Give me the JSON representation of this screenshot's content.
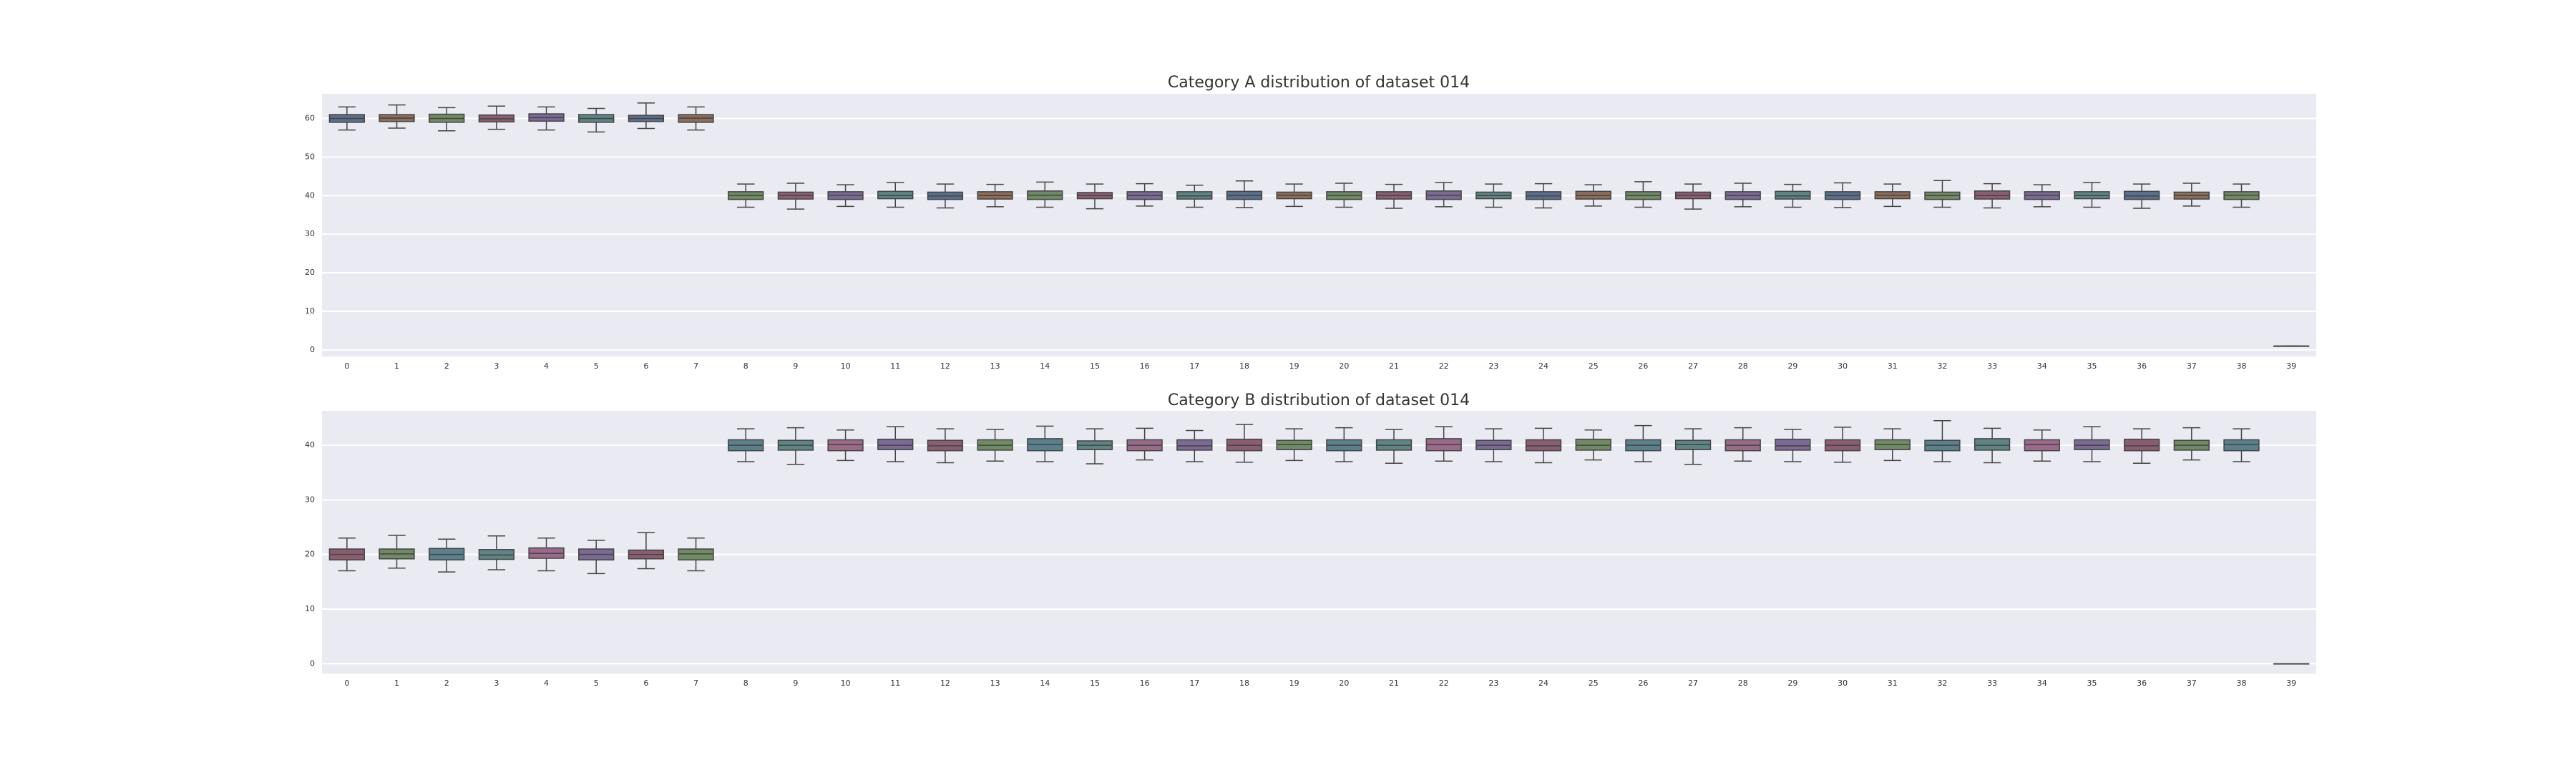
{
  "chart_data": [
    {
      "type": "box",
      "title": "Category A distribution of dataset 014",
      "categories": [
        "0",
        "1",
        "2",
        "3",
        "4",
        "5",
        "6",
        "7",
        "8",
        "9",
        "10",
        "11",
        "12",
        "13",
        "14",
        "15",
        "16",
        "17",
        "18",
        "19",
        "20",
        "21",
        "22",
        "23",
        "24",
        "25",
        "26",
        "27",
        "28",
        "29",
        "30",
        "31",
        "32",
        "33",
        "34",
        "35",
        "36",
        "37",
        "38",
        "39"
      ],
      "boxes": [
        [
          57,
          59,
          60,
          61,
          63
        ],
        [
          57.5,
          59.2,
          60.1,
          61,
          63.5
        ],
        [
          56.8,
          59,
          60,
          61.1,
          62.8
        ],
        [
          57.2,
          59.1,
          59.9,
          60.9,
          63.2
        ],
        [
          57,
          59.3,
          60.2,
          61.2,
          63
        ],
        [
          56.5,
          59,
          60,
          61,
          62.6
        ],
        [
          57.4,
          59.2,
          60,
          60.8,
          64
        ],
        [
          57,
          59,
          60.1,
          61,
          63
        ],
        [
          37,
          39,
          40,
          41,
          43
        ],
        [
          36.5,
          39.1,
          40,
          40.9,
          43.2
        ],
        [
          37.2,
          39,
          40.1,
          41,
          42.8
        ],
        [
          37,
          39.2,
          40,
          41.1,
          43.4
        ],
        [
          36.8,
          39,
          39.9,
          40.9,
          43
        ],
        [
          37.1,
          39.1,
          40,
          41,
          42.9
        ],
        [
          37,
          39,
          40.1,
          41.2,
          43.5
        ],
        [
          36.6,
          39.2,
          40,
          40.8,
          43
        ],
        [
          37.3,
          39,
          40,
          41,
          43.1
        ],
        [
          37,
          39.1,
          39.9,
          41,
          42.7
        ],
        [
          36.9,
          39,
          40,
          41.1,
          43.8
        ],
        [
          37.2,
          39.2,
          40.1,
          40.9,
          43
        ],
        [
          37,
          39,
          40,
          41,
          43.2
        ],
        [
          36.7,
          39.1,
          40,
          41,
          42.9
        ],
        [
          37.1,
          39,
          40.1,
          41.2,
          43.4
        ],
        [
          37,
          39.2,
          40,
          40.9,
          43
        ],
        [
          36.8,
          39,
          39.9,
          41,
          43.1
        ],
        [
          37.3,
          39.1,
          40,
          41.1,
          42.8
        ],
        [
          37,
          39,
          40,
          41,
          43.6
        ],
        [
          36.5,
          39.2,
          40.1,
          40.9,
          43
        ],
        [
          37.1,
          39,
          40,
          41,
          43.2
        ],
        [
          37,
          39.1,
          39.9,
          41.1,
          42.9
        ],
        [
          36.9,
          39,
          40,
          41,
          43.3
        ],
        [
          37.2,
          39.2,
          40.1,
          41,
          43
        ],
        [
          37,
          39,
          40,
          40.9,
          43.9
        ],
        [
          36.8,
          39.1,
          40,
          41.2,
          43.1
        ],
        [
          37.1,
          39,
          40.1,
          41,
          42.8
        ],
        [
          37,
          39.2,
          40,
          41,
          43.4
        ],
        [
          36.7,
          39,
          39.9,
          41.1,
          43
        ],
        [
          37.3,
          39.1,
          40,
          40.9,
          43.2
        ],
        [
          37,
          39,
          40.1,
          41,
          43
        ],
        [
          1,
          1,
          1,
          1,
          1
        ]
      ],
      "palette": [
        "#5b6f8c",
        "#8c6d5a",
        "#6f8a64",
        "#8a5e6e",
        "#7a6a94",
        "#5f8486"
      ],
      "ylim": [
        -1.7,
        66.4
      ],
      "yticks": [
        0,
        10,
        20,
        30,
        40,
        50,
        60
      ],
      "grid": true
    },
    {
      "type": "box",
      "title": "Category B distribution of dataset 014",
      "categories": [
        "0",
        "1",
        "2",
        "3",
        "4",
        "5",
        "6",
        "7",
        "8",
        "9",
        "10",
        "11",
        "12",
        "13",
        "14",
        "15",
        "16",
        "17",
        "18",
        "19",
        "20",
        "21",
        "22",
        "23",
        "24",
        "25",
        "26",
        "27",
        "28",
        "29",
        "30",
        "31",
        "32",
        "33",
        "34",
        "35",
        "36",
        "37",
        "38",
        "39"
      ],
      "boxes": [
        [
          17,
          19,
          20,
          21,
          23
        ],
        [
          17.5,
          19.2,
          20.1,
          21,
          23.5
        ],
        [
          16.8,
          19,
          20,
          21.1,
          22.8
        ],
        [
          17.2,
          19.1,
          19.9,
          20.9,
          23.4
        ],
        [
          17,
          19.3,
          20.2,
          21.2,
          23
        ],
        [
          16.5,
          19,
          20,
          21,
          22.6
        ],
        [
          17.4,
          19.2,
          20,
          20.8,
          24
        ],
        [
          17,
          19,
          20.1,
          21,
          23
        ],
        [
          37,
          39,
          40,
          41,
          43
        ],
        [
          36.5,
          39.1,
          40,
          40.9,
          43.2
        ],
        [
          37.2,
          39,
          40.1,
          41,
          42.8
        ],
        [
          37,
          39.2,
          40,
          41.1,
          43.4
        ],
        [
          36.8,
          39,
          39.9,
          40.9,
          43
        ],
        [
          37.1,
          39.1,
          40,
          41,
          42.9
        ],
        [
          37,
          39,
          40.1,
          41.2,
          43.5
        ],
        [
          36.6,
          39.2,
          40,
          40.8,
          43
        ],
        [
          37.3,
          39,
          40,
          41,
          43.1
        ],
        [
          37,
          39.1,
          39.9,
          41,
          42.7
        ],
        [
          36.9,
          39,
          40,
          41.1,
          43.8
        ],
        [
          37.2,
          39.2,
          40.1,
          40.9,
          43
        ],
        [
          37,
          39,
          40,
          41,
          43.2
        ],
        [
          36.7,
          39.1,
          40,
          41,
          42.9
        ],
        [
          37.1,
          39,
          40.1,
          41.2,
          43.4
        ],
        [
          37,
          39.2,
          40,
          40.9,
          43
        ],
        [
          36.8,
          39,
          39.9,
          41,
          43.1
        ],
        [
          37.3,
          39.1,
          40,
          41.1,
          42.8
        ],
        [
          37,
          39,
          40,
          41,
          43.6
        ],
        [
          36.5,
          39.2,
          40.1,
          40.9,
          43
        ],
        [
          37.1,
          39,
          40,
          41,
          43.2
        ],
        [
          37,
          39.1,
          39.9,
          41.1,
          42.9
        ],
        [
          36.9,
          39,
          40,
          41,
          43.3
        ],
        [
          37.2,
          39.2,
          40.1,
          41,
          43
        ],
        [
          37,
          39,
          40,
          40.9,
          44.5
        ],
        [
          36.8,
          39.1,
          40,
          41.2,
          43.1
        ],
        [
          37.1,
          39,
          40.1,
          41,
          42.8
        ],
        [
          37,
          39.2,
          40,
          41,
          43.4
        ],
        [
          36.7,
          39,
          39.9,
          41.1,
          43
        ],
        [
          37.3,
          39.1,
          40,
          40.9,
          43.2
        ],
        [
          37,
          39,
          40.1,
          41,
          43
        ],
        [
          0,
          0,
          0,
          0,
          0
        ]
      ],
      "palette": [
        "#8a5e6e",
        "#6f8a64",
        "#5b7f8c",
        "#5f8486",
        "#9a6a8a",
        "#7a6a94"
      ],
      "ylim": [
        -1.8,
        46.3
      ],
      "yticks": [
        0,
        10,
        20,
        30,
        40
      ],
      "grid": true
    }
  ]
}
